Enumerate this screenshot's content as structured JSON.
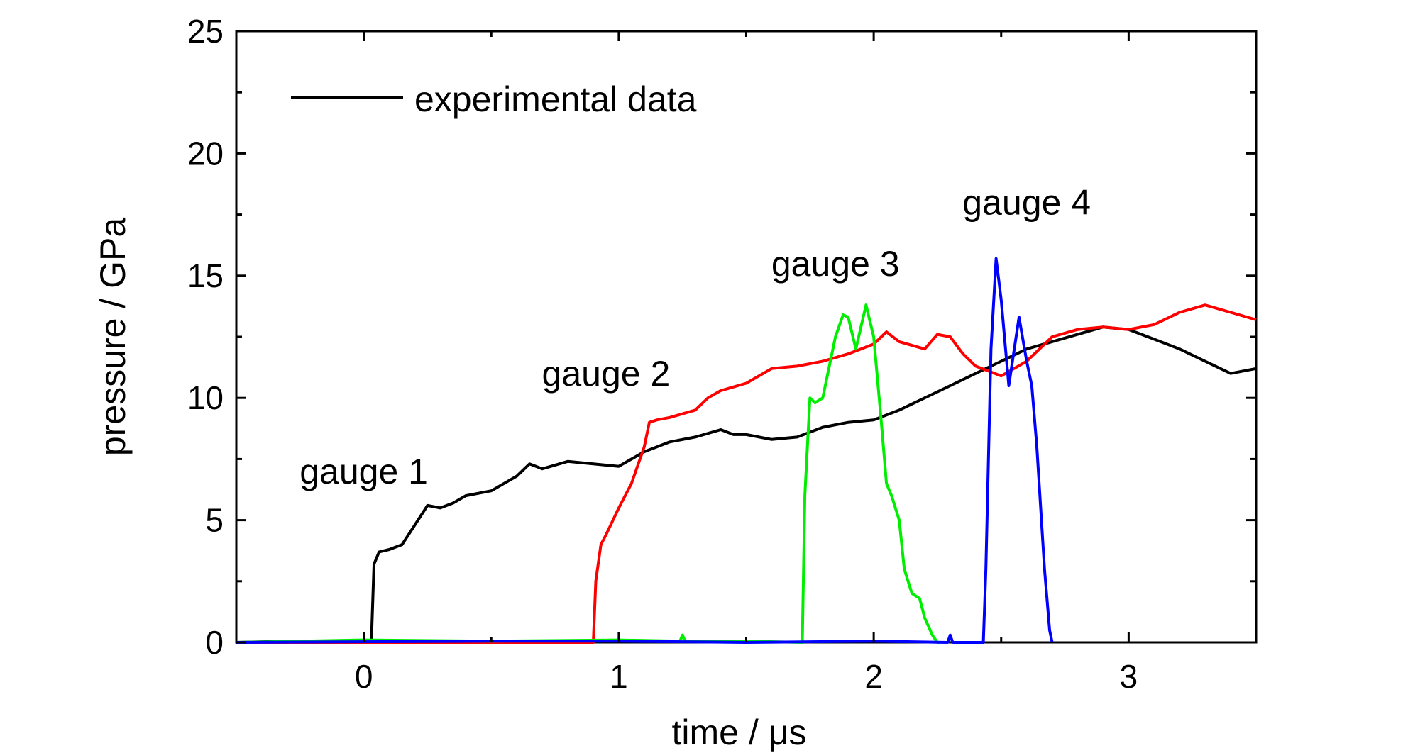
{
  "chart_data": {
    "type": "line",
    "xlabel": "time / μs",
    "ylabel": "pressure / GPa",
    "xlim": [
      -0.5,
      3.5
    ],
    "ylim": [
      0,
      25
    ],
    "xticks": [
      0,
      1,
      2,
      3
    ],
    "yticks": [
      0,
      5,
      10,
      15,
      20,
      25
    ],
    "grid": false,
    "legend": {
      "placement": "top-left",
      "entries": [
        {
          "label": "experimental data",
          "color": "#000000"
        }
      ]
    },
    "annotations": [
      {
        "text": "gauge 1",
        "x": 0.0,
        "y": 6.5
      },
      {
        "text": "gauge 2",
        "x": 0.95,
        "y": 10.5
      },
      {
        "text": "gauge 3",
        "x": 1.85,
        "y": 15.0
      },
      {
        "text": "gauge 4",
        "x": 2.6,
        "y": 17.5
      }
    ],
    "series": [
      {
        "color": "#000000",
        "x": [
          -0.5,
          -0.3,
          -0.1,
          0.0,
          0.03,
          0.04,
          0.06,
          0.1,
          0.15,
          0.2,
          0.25,
          0.3,
          0.35,
          0.4,
          0.5,
          0.6,
          0.65,
          0.7,
          0.8,
          0.9,
          1.0,
          1.1,
          1.2,
          1.3,
          1.4,
          1.45,
          1.5,
          1.6,
          1.7,
          1.8,
          1.9,
          2.0,
          2.1,
          2.2,
          2.3,
          2.4,
          2.5,
          2.6,
          2.7,
          2.8,
          2.9,
          3.0,
          3.1,
          3.2,
          3.3,
          3.4,
          3.5
        ],
        "y": [
          0,
          0.05,
          0,
          0.05,
          0.1,
          3.2,
          3.7,
          3.8,
          4.0,
          4.8,
          5.6,
          5.5,
          5.7,
          6.0,
          6.2,
          6.8,
          7.3,
          7.1,
          7.4,
          7.3,
          7.2,
          7.8,
          8.2,
          8.4,
          8.7,
          8.5,
          8.5,
          8.3,
          8.4,
          8.8,
          9.0,
          9.1,
          9.5,
          10.0,
          10.5,
          11.0,
          11.5,
          12.0,
          12.3,
          12.6,
          12.9,
          12.8,
          12.4,
          12.0,
          11.5,
          11.0,
          11.2
        ]
      },
      {
        "color": "#ff0000",
        "x": [
          -0.5,
          0.9,
          0.91,
          0.93,
          0.95,
          1.0,
          1.05,
          1.1,
          1.12,
          1.15,
          1.2,
          1.3,
          1.35,
          1.4,
          1.5,
          1.6,
          1.7,
          1.8,
          1.9,
          2.0,
          2.05,
          2.1,
          2.2,
          2.25,
          2.3,
          2.35,
          2.4,
          2.5,
          2.6,
          2.7,
          2.8,
          2.9,
          3.0,
          3.1,
          3.2,
          3.3,
          3.4,
          3.5
        ],
        "y": [
          0,
          0,
          2.5,
          4.0,
          4.4,
          5.5,
          6.5,
          8.0,
          9.0,
          9.1,
          9.2,
          9.5,
          10.0,
          10.3,
          10.6,
          11.2,
          11.3,
          11.5,
          11.8,
          12.2,
          12.7,
          12.3,
          12.0,
          12.6,
          12.5,
          11.8,
          11.3,
          10.9,
          11.5,
          12.5,
          12.8,
          12.9,
          12.8,
          13.0,
          13.5,
          13.8,
          13.5,
          13.2
        ]
      },
      {
        "color": "#00ee00",
        "x": [
          -0.5,
          0.0,
          0.5,
          1.0,
          1.24,
          1.25,
          1.26,
          1.5,
          1.72,
          1.73,
          1.75,
          1.77,
          1.8,
          1.85,
          1.88,
          1.9,
          1.93,
          1.97,
          2.0,
          2.03,
          2.05,
          2.07,
          2.1,
          2.12,
          2.15,
          2.18,
          2.2,
          2.23,
          2.25,
          2.26
        ],
        "y": [
          0,
          0.1,
          0.05,
          0.1,
          0.05,
          0.3,
          0.05,
          0.05,
          0,
          6.0,
          10.0,
          9.8,
          10.0,
          12.5,
          13.4,
          13.3,
          12.0,
          13.8,
          12.5,
          9.0,
          6.5,
          6.0,
          5.0,
          3.0,
          2.0,
          1.8,
          1.0,
          0.3,
          0,
          0
        ]
      },
      {
        "color": "#0000ff",
        "x": [
          -0.5,
          0.5,
          1.0,
          1.5,
          2.0,
          2.29,
          2.3,
          2.31,
          2.43,
          2.44,
          2.46,
          2.48,
          2.5,
          2.53,
          2.57,
          2.6,
          2.62,
          2.64,
          2.67,
          2.69,
          2.7
        ],
        "y": [
          0,
          0.05,
          0.05,
          0,
          0.05,
          0,
          0.3,
          0,
          0,
          3.0,
          12.0,
          15.7,
          14.0,
          10.5,
          13.3,
          11.5,
          10.5,
          8.0,
          3.0,
          0.5,
          0
        ]
      }
    ]
  }
}
